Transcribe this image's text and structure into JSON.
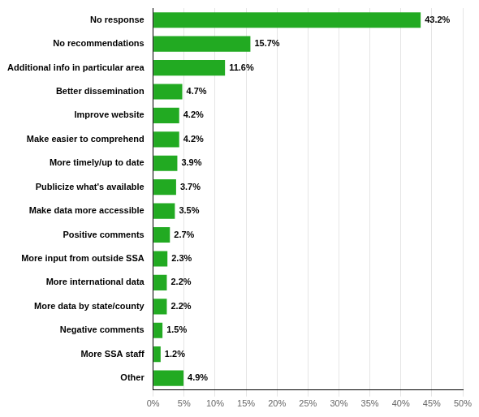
{
  "chart_data": {
    "type": "bar",
    "orientation": "horizontal",
    "categories": [
      "Other",
      "More SSA staff",
      "Negative comments",
      "More data by state/county",
      "More international data",
      "More input from outside SSA",
      "Positive comments",
      "Make data more accessible",
      "Publicize what's available",
      "More timely/up to date",
      "Make easier to comprehend",
      "Improve website",
      "Better dissemination",
      "Additional info in particular area",
      "No recommendations",
      "No response"
    ],
    "values": [
      4.9,
      1.2,
      1.5,
      2.2,
      2.2,
      2.3,
      2.7,
      3.5,
      3.7,
      3.9,
      4.2,
      4.2,
      4.7,
      11.6,
      15.7,
      43.2
    ],
    "value_labels": [
      "4.9%",
      "1.2%",
      "1.5%",
      "2.2%",
      "2.2%",
      "2.3%",
      "2.7%",
      "3.5%",
      "3.7%",
      "3.9%",
      "4.2%",
      "4.2%",
      "4.7%",
      "11.6%",
      "15.7%",
      "43.2%"
    ],
    "data_labels": true,
    "color": "#22aa22",
    "xlim": [
      0,
      50
    ],
    "xticks": [
      {
        "value": 0,
        "label": "0%"
      },
      {
        "value": 5,
        "label": "5%"
      },
      {
        "value": 10,
        "label": "10%"
      },
      {
        "value": 15,
        "label": "15%"
      },
      {
        "value": 20,
        "label": "20%"
      },
      {
        "value": 25,
        "label": "25%"
      },
      {
        "value": 30,
        "label": "30%"
      },
      {
        "value": 35,
        "label": "35%"
      },
      {
        "value": 40,
        "label": "40%"
      },
      {
        "value": 45,
        "label": "45%"
      },
      {
        "value": 50,
        "label": "50%"
      }
    ],
    "grid": true
  }
}
